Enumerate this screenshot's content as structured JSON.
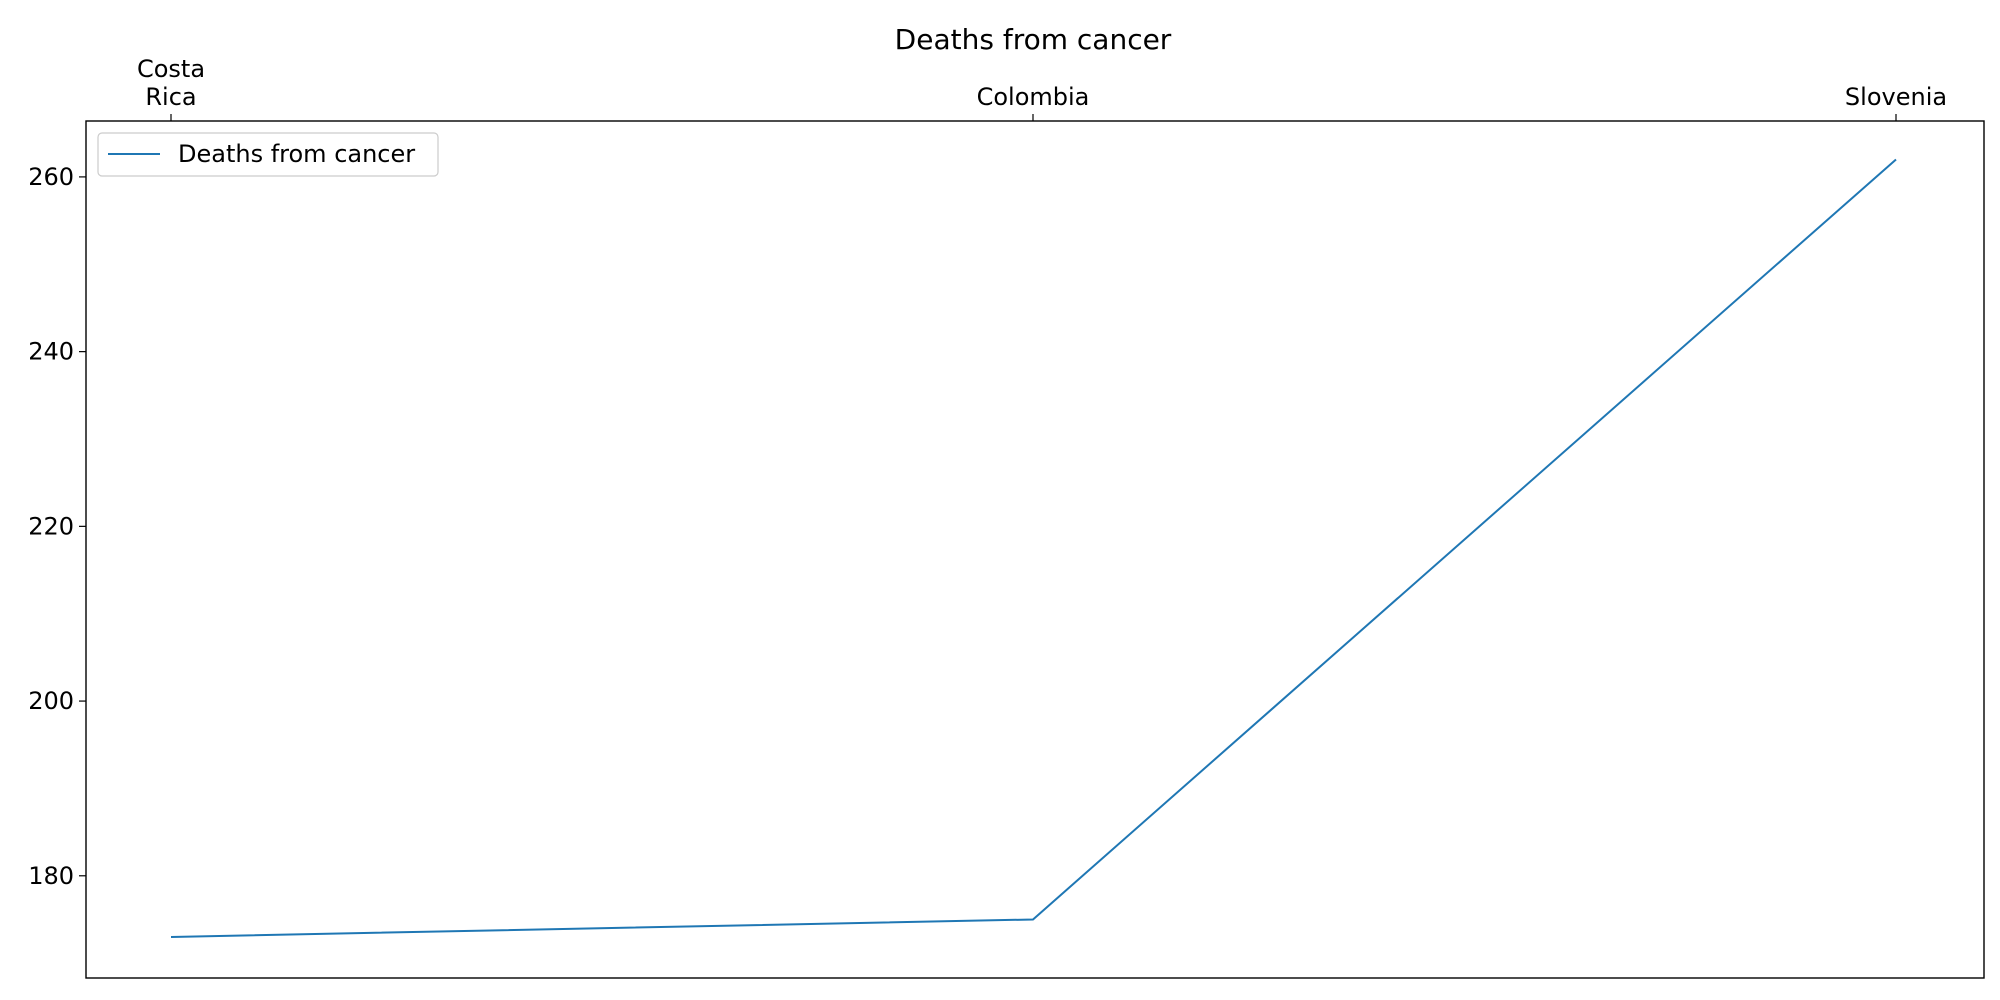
{
  "chart_data": {
    "type": "line",
    "title": "Deaths from cancer",
    "xlabel": "",
    "ylabel": "",
    "x_axis_position": "top",
    "categories": [
      [
        "Costa",
        "Rica"
      ],
      [
        "Colombia"
      ],
      [
        "Slovenia"
      ]
    ],
    "series": [
      {
        "name": "Deaths from cancer",
        "values": [
          173,
          175,
          262
        ],
        "color": "#1f77b4"
      }
    ],
    "yticks": [
      180,
      200,
      220,
      240,
      260
    ],
    "ylim": [
      168.3,
      266.4
    ],
    "grid": false,
    "legend_position": "top-left"
  }
}
